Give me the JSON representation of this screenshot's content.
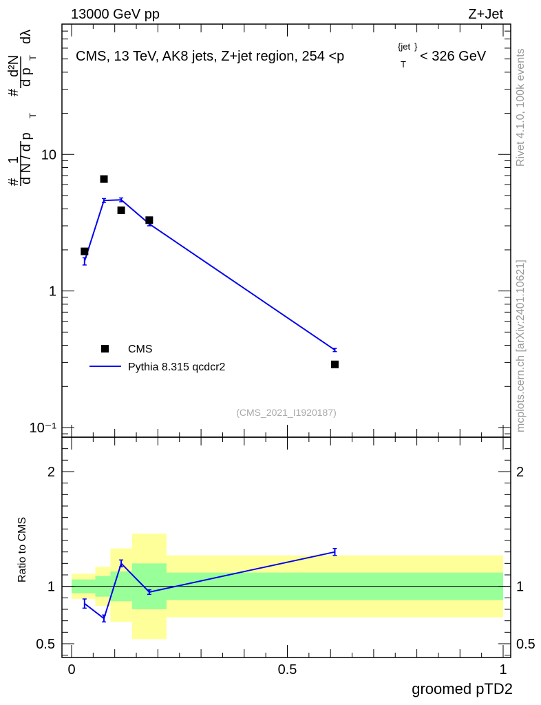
{
  "header": {
    "energy_label": "13000 GeV pp",
    "process_label": "Z+Jet"
  },
  "side": {
    "rivet_label": "Rivet 4.1.0,  100k events",
    "mcplots_label": "mcplots.cern.ch [arXiv:2401.10621]"
  },
  "plot": {
    "title_main": "CMS, 13 TeV, AK8 jets, Z+jet region, 254 <p",
    "title_sub": "T",
    "title_sup": "{jet",
    "title_sup2": "}",
    "title_end": "< 326 GeV",
    "analysis_label": "(CMS_2021_I1920187)",
    "ylabel_parts": {
      "hash1": "#",
      "one": "1",
      "dn": "d N / d p",
      "t1": "T",
      "hash2": "#",
      "d2n": "d²N",
      "dp": "d p",
      "t2": "T",
      "dl": "dλ"
    }
  },
  "ratio": {
    "ylabel": "Ratio to CMS"
  },
  "colors": {
    "data": "#000000",
    "mc": "#0000ee",
    "band_inner": "#99ff99",
    "band_outer": "#ffff99"
  },
  "chart_data": {
    "type": "scatter",
    "xlabel": "groomed pTD2",
    "xlim": [
      0,
      1
    ],
    "main": {
      "yscale": "log",
      "ylim": [
        0.085,
        90
      ],
      "yticks": [
        0.1,
        1,
        10
      ],
      "ytick_labels": [
        "10⁻¹",
        "1",
        "10"
      ],
      "series": [
        {
          "name": "CMS",
          "style": "markers",
          "x": [
            0.03,
            0.075,
            0.115,
            0.18,
            0.61
          ],
          "y": [
            1.95,
            6.6,
            3.9,
            3.3,
            0.29
          ]
        },
        {
          "name": "Pythia 8.315 qcdcr2",
          "style": "line",
          "x": [
            0.03,
            0.075,
            0.115,
            0.18,
            0.61
          ],
          "y": [
            1.65,
            4.6,
            4.65,
            3.1,
            0.37
          ],
          "yerr": [
            0.1,
            0.15,
            0.15,
            0.1,
            0.01
          ]
        }
      ]
    },
    "ratio": {
      "ylim": [
        0.38,
        2.3
      ],
      "yticks": [
        0.5,
        1,
        2
      ],
      "ytick_labels": [
        "0.5",
        "1",
        "2"
      ],
      "bins": [
        {
          "x0": 0.0,
          "x1": 0.055,
          "inner": [
            0.94,
            1.06
          ],
          "outer": [
            0.89,
            1.11
          ]
        },
        {
          "x0": 0.055,
          "x1": 0.09,
          "inner": [
            0.91,
            1.09
          ],
          "outer": [
            0.83,
            1.17
          ]
        },
        {
          "x0": 0.09,
          "x1": 0.14,
          "inner": [
            0.87,
            1.13
          ],
          "outer": [
            0.69,
            1.33
          ]
        },
        {
          "x0": 0.14,
          "x1": 0.22,
          "inner": [
            0.8,
            1.2
          ],
          "outer": [
            0.54,
            1.46
          ]
        },
        {
          "x0": 0.22,
          "x1": 1.0,
          "inner": [
            0.88,
            1.12
          ],
          "outer": [
            0.73,
            1.27
          ]
        }
      ],
      "mc": {
        "x": [
          0.03,
          0.075,
          0.115,
          0.18,
          0.61
        ],
        "y": [
          0.85,
          0.72,
          1.2,
          0.95,
          1.3
        ],
        "yerr": [
          0.04,
          0.03,
          0.03,
          0.02,
          0.03
        ]
      }
    },
    "xticks": [
      0,
      0.5,
      1
    ],
    "xtick_labels": [
      "0",
      "0.5",
      "1"
    ],
    "legend": {
      "position": "lower-left",
      "entries": [
        "CMS",
        "Pythia 8.315 qcdcr2"
      ]
    }
  }
}
